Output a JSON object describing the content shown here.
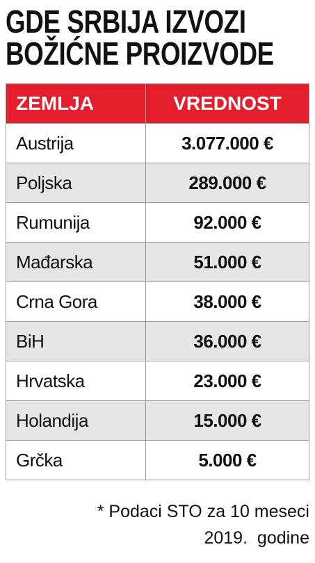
{
  "header": {
    "title_lines": [
      "GDE SRBIJA IZVOZI",
      "BOŽIĆNE PROIZVODE"
    ]
  },
  "table": {
    "columns": [
      "ZEMLJA",
      "VREDNOST"
    ],
    "rows": [
      [
        "Austrija",
        "3.077.000 €"
      ],
      [
        "Poljska",
        "289.000 €"
      ],
      [
        "Rumunija",
        "92.000 €"
      ],
      [
        "Mađarska",
        "51.000 €"
      ],
      [
        "Crna Gora",
        "38.000 €"
      ],
      [
        "BiH",
        "36.000 €"
      ],
      [
        "Hrvatska",
        "23.000 €"
      ],
      [
        "Holandija",
        "15.000 €"
      ],
      [
        "Grčka",
        "5.000 €"
      ]
    ]
  },
  "footnote": {
    "lines": [
      "* Podaci STO za 10 meseci",
      "2019.  godine"
    ]
  }
}
